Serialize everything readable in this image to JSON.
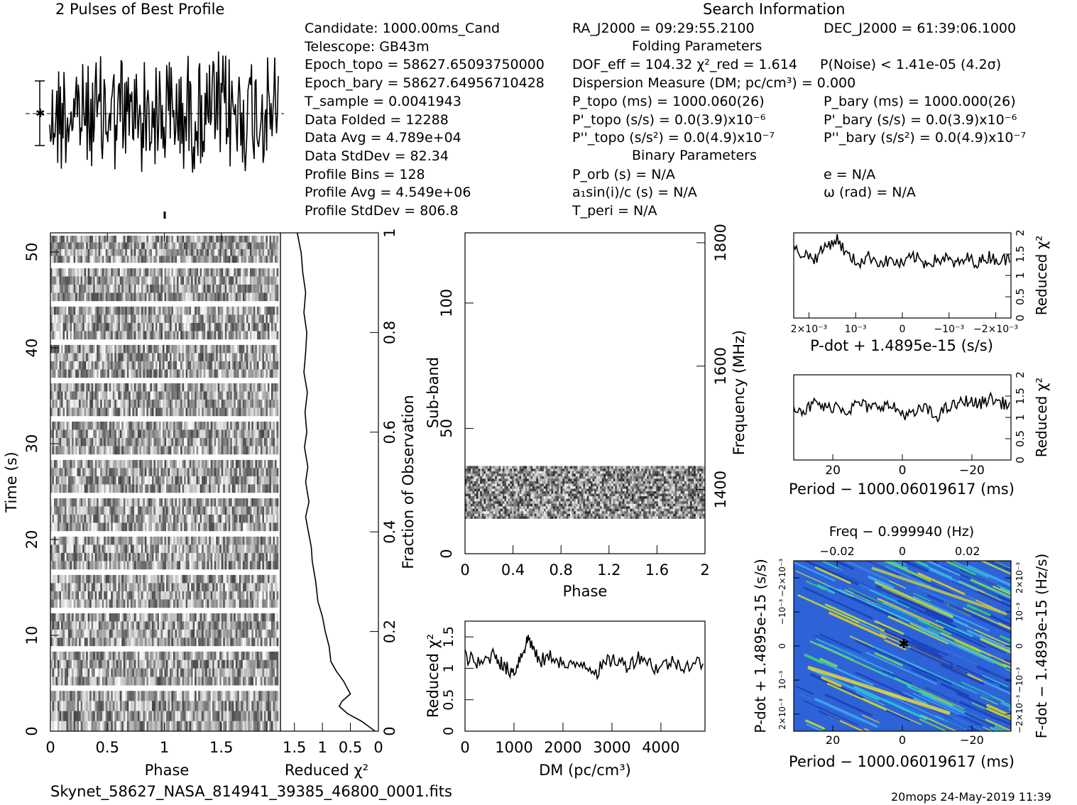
{
  "header": {
    "pulses_title": "2 Pulses of Best Profile",
    "search_title": "Search Information",
    "folding_title": "Folding Parameters",
    "binary_title": "Binary Parameters"
  },
  "info_left": [
    "Candidate:  1000.00ms_Cand",
    "Telescope:  GB43m",
    "Epoch_topo = 58627.65093750000",
    "Epoch_bary = 58627.64956710428",
    "T_sample        =  0.0041943",
    "Data Folded     =  12288",
    "Data Avg        =  4.789e+04",
    "Data StdDev     =  82.34",
    "Profile Bins    =  128",
    "Profile Avg     =  4.549e+06",
    "Profile StdDev  =  806.8"
  ],
  "info_mid": [
    "RA_J2000 = 09:29:55.2100",
    "DOF_eff = 104.32  χ²_red = 1.614",
    "Dispersion Measure (DM; pc/cm³) = 0.000",
    "P_topo (ms) =  1000.060(26)",
    "P'_topo (s/s) = 0.0(3.9)x10⁻⁶",
    "P''_topo (s/s²) = 0.0(4.9)x10⁻⁷",
    "P_orb (s) = N/A",
    "a₁sin(i)/c (s) = N/A",
    "T_peri = N/A"
  ],
  "info_right": [
    "DEC_J2000 = 61:39:06.1000",
    "P(Noise) < 1.41e-05  (4.2σ)",
    "P_bary (ms) =  1000.000(26)",
    "P'_bary (s/s) = 0.0(3.9)x10⁻⁶",
    "P''_bary (s/s²) = 0.0(4.9)x10⁻⁷",
    "e = N/A",
    "ω (rad) = N/A"
  ],
  "footer": {
    "filename": "Skynet_58627_NASA_814941_39385_46800_0001.fits",
    "stamp": "20mops 24-May-2019 11:39"
  },
  "chart_data": [
    {
      "type": "line",
      "name": "profile",
      "title": "2 Pulses of Best Profile",
      "x_range": [
        0,
        2
      ],
      "note": "noise-like profile, two pulse periods"
    },
    {
      "type": "heatmap",
      "name": "time-phase",
      "xlabel": "Phase",
      "ylabel": "Time (s)",
      "x_ticks": [
        "0",
        "0.5",
        "1",
        "1.5"
      ],
      "y_ticks": [
        "0",
        "10",
        "20",
        "30",
        "40",
        "50"
      ],
      "xlim": [
        0,
        2
      ],
      "ylim": [
        0,
        52
      ],
      "colormap": "grayscale",
      "gaps_s": [
        4.5,
        8.6,
        12.6,
        16.6,
        20.6,
        24.6,
        28.6,
        32.6,
        36.6,
        40.6,
        44.6,
        48.6
      ]
    },
    {
      "type": "line",
      "name": "time-chi2",
      "xlabel": "Reduced χ²",
      "x_ticks": [
        "1.5",
        "1",
        "0.5",
        "0"
      ],
      "right_ylabel": "Fraction of Observation",
      "right_ticks": [
        "0",
        "0.2",
        "0.4",
        "0.6",
        "0.8",
        "1"
      ],
      "points": [
        [
          0.06,
          0.0
        ],
        [
          0.3,
          0.02
        ],
        [
          0.55,
          0.035
        ],
        [
          0.7,
          0.05
        ],
        [
          0.65,
          0.06
        ],
        [
          0.5,
          0.075
        ],
        [
          0.55,
          0.085
        ],
        [
          0.62,
          0.1
        ],
        [
          0.75,
          0.12
        ],
        [
          0.85,
          0.14
        ],
        [
          0.88,
          0.17
        ],
        [
          0.95,
          0.2
        ],
        [
          1.0,
          0.23
        ],
        [
          1.08,
          0.26
        ],
        [
          1.12,
          0.3
        ],
        [
          1.18,
          0.34
        ],
        [
          1.2,
          0.37
        ],
        [
          1.25,
          0.4
        ],
        [
          1.3,
          0.43
        ],
        [
          1.24,
          0.46
        ],
        [
          1.3,
          0.5
        ],
        [
          1.26,
          0.53
        ],
        [
          1.32,
          0.57
        ],
        [
          1.28,
          0.6
        ],
        [
          1.31,
          0.64
        ],
        [
          1.27,
          0.68
        ],
        [
          1.33,
          0.72
        ],
        [
          1.3,
          0.76
        ],
        [
          1.28,
          0.8
        ],
        [
          1.33,
          0.84
        ],
        [
          1.3,
          0.88
        ],
        [
          1.35,
          0.92
        ],
        [
          1.38,
          0.96
        ],
        [
          1.45,
          1.0
        ]
      ]
    },
    {
      "type": "heatmap",
      "name": "subband-phase",
      "xlabel": "Phase",
      "ylabel": "Sub-band",
      "right_ylabel": "Frequency (MHz)",
      "x_ticks": [
        "0",
        "0.4",
        "0.8",
        "1.2",
        "1.6",
        "2"
      ],
      "y_ticks": [
        "0",
        "50",
        "100"
      ],
      "right_ticks": [
        "1400",
        "1600",
        "1800"
      ],
      "ylim": [
        0,
        128
      ],
      "filled_subbands": [
        14,
        35
      ]
    },
    {
      "type": "line",
      "name": "dm-chi2",
      "xlabel": "DM (pc/cm³)",
      "ylabel": "Reduced χ²",
      "x_ticks": [
        "0",
        "1000",
        "2000",
        "3000",
        "4000"
      ],
      "y_ticks": [
        "0",
        "0.5",
        "1",
        "1.5"
      ],
      "xlim": [
        0,
        4900
      ],
      "ylim": [
        0,
        1.75
      ],
      "points": [
        [
          0,
          1.2
        ],
        [
          300,
          1.05
        ],
        [
          600,
          1.25
        ],
        [
          800,
          1.0
        ],
        [
          1000,
          0.95
        ],
        [
          1200,
          1.3
        ],
        [
          1300,
          1.5
        ],
        [
          1500,
          1.1
        ],
        [
          1800,
          1.2
        ],
        [
          2100,
          1.0
        ],
        [
          2400,
          1.1
        ],
        [
          2700,
          0.95
        ],
        [
          3000,
          1.15
        ],
        [
          3300,
          1.05
        ],
        [
          3600,
          1.2
        ],
        [
          3900,
          1.0
        ],
        [
          4200,
          1.1
        ],
        [
          4500,
          1.05
        ],
        [
          4900,
          1.1
        ]
      ]
    },
    {
      "type": "line",
      "name": "pdot-chi2",
      "xlabel": "P-dot + 1.4895e-15 (s/s)",
      "ylabel": "Reduced χ²",
      "x_ticks": [
        "2×10⁻³",
        "10⁻³",
        "0",
        "−10⁻³",
        "−2×10⁻³"
      ],
      "y_ticks": [
        "0",
        "0.5",
        "1",
        "1.5",
        "2"
      ],
      "ylim": [
        0,
        2
      ],
      "points": [
        [
          0,
          1.6
        ],
        [
          0.05,
          1.5
        ],
        [
          0.1,
          1.4
        ],
        [
          0.15,
          1.7
        ],
        [
          0.2,
          1.85
        ],
        [
          0.25,
          1.45
        ],
        [
          0.3,
          1.3
        ],
        [
          0.35,
          1.45
        ],
        [
          0.4,
          1.3
        ],
        [
          0.45,
          1.35
        ],
        [
          0.5,
          1.25
        ],
        [
          0.55,
          1.45
        ],
        [
          0.6,
          1.3
        ],
        [
          0.65,
          1.35
        ],
        [
          0.7,
          1.4
        ],
        [
          0.75,
          1.25
        ],
        [
          0.8,
          1.4
        ],
        [
          0.85,
          1.3
        ],
        [
          0.9,
          1.45
        ],
        [
          0.95,
          1.35
        ],
        [
          1.0,
          1.4
        ]
      ]
    },
    {
      "type": "line",
      "name": "period-chi2",
      "xlabel": "Period − 1000.06019617 (ms)",
      "ylabel": "Reduced χ²",
      "x_ticks": [
        "20",
        "0",
        "−20"
      ],
      "y_ticks": [
        "0",
        "0.5",
        "1",
        "1.5",
        "2"
      ],
      "ylim": [
        0,
        2
      ],
      "points": [
        [
          0,
          1.3
        ],
        [
          0.05,
          1.15
        ],
        [
          0.1,
          1.35
        ],
        [
          0.15,
          1.2
        ],
        [
          0.2,
          1.3
        ],
        [
          0.25,
          1.15
        ],
        [
          0.3,
          1.35
        ],
        [
          0.35,
          1.2
        ],
        [
          0.4,
          1.3
        ],
        [
          0.45,
          1.25
        ],
        [
          0.5,
          1.1
        ],
        [
          0.55,
          1.05
        ],
        [
          0.6,
          1.25
        ],
        [
          0.65,
          1.0
        ],
        [
          0.7,
          1.2
        ],
        [
          0.75,
          1.3
        ],
        [
          0.8,
          1.4
        ],
        [
          0.85,
          1.3
        ],
        [
          0.9,
          1.45
        ],
        [
          0.95,
          1.35
        ],
        [
          1.0,
          1.3
        ]
      ]
    },
    {
      "type": "heatmap",
      "name": "pdot-period",
      "title": "Freq − 0.999940 (Hz)",
      "top_ticks": [
        "−0.02",
        "0",
        "0.02"
      ],
      "xlabel": "Period − 1000.06019617 (ms)",
      "x_ticks": [
        "20",
        "0",
        "−20"
      ],
      "ylabel": "P-dot + 1.4895e-15 (s/s)",
      "y_ticks": [
        "2×10⁻³",
        "10⁻³",
        "0",
        "−10⁻³",
        "−2×10⁻³"
      ],
      "right_ylabel": "F-dot − 1.4893e-15 (Hz/s)",
      "right_ticks": [
        "−2×10⁻³",
        "−10⁻³",
        "0",
        "10⁻³",
        "2×10⁻³"
      ],
      "colormap": "blue-green-yellow",
      "peak": [
        0,
        0
      ]
    }
  ]
}
